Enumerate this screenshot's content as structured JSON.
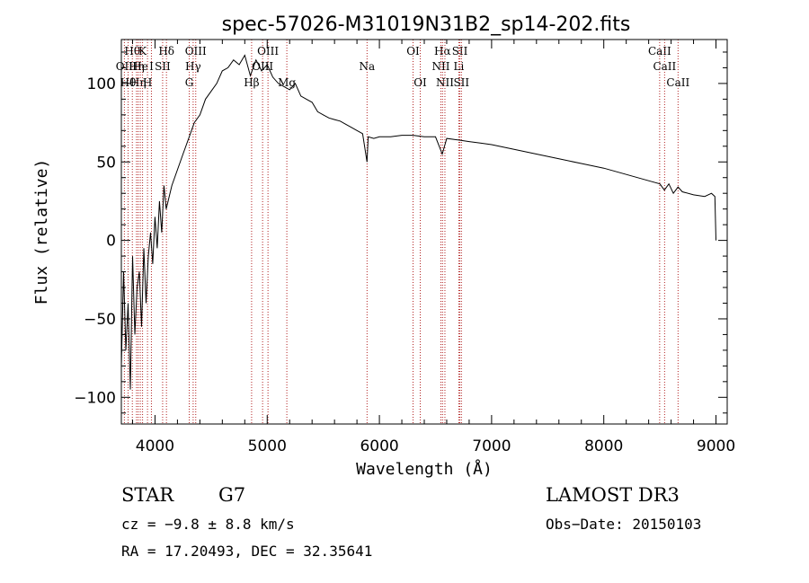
{
  "chart_data": {
    "type": "line",
    "title": "spec-57026-M31019N31B2_sp14-202.fits",
    "xlabel": "Wavelength (Å)",
    "ylabel": "Flux (relative)",
    "xlim": [
      3700,
      9100
    ],
    "ylim": [
      -117,
      128
    ],
    "xticks": [
      4000,
      5000,
      6000,
      7000,
      8000,
      9000
    ],
    "xtick_labels": [
      "4000",
      "5000",
      "6000",
      "7000",
      "8000",
      "9000"
    ],
    "yticks": [
      -100,
      -50,
      0,
      50,
      100
    ],
    "ytick_labels": [
      "−100",
      "−50",
      "0",
      "50",
      "100"
    ],
    "series_color": "#000000",
    "line_color": "#b22222",
    "spectrum": {
      "x": [
        3700,
        3720,
        3740,
        3760,
        3780,
        3800,
        3820,
        3840,
        3860,
        3880,
        3900,
        3920,
        3940,
        3960,
        3980,
        4000,
        4020,
        4040,
        4060,
        4080,
        4100,
        4150,
        4200,
        4250,
        4300,
        4350,
        4400,
        4450,
        4500,
        4550,
        4600,
        4650,
        4700,
        4750,
        4800,
        4850,
        4900,
        4950,
        5000,
        5050,
        5100,
        5150,
        5200,
        5250,
        5300,
        5350,
        5400,
        5450,
        5500,
        5550,
        5600,
        5650,
        5700,
        5750,
        5800,
        5850,
        5890,
        5900,
        5950,
        6000,
        6100,
        6200,
        6300,
        6400,
        6500,
        6560,
        6600,
        6700,
        6800,
        6900,
        7000,
        7200,
        7400,
        7600,
        7800,
        8000,
        8200,
        8400,
        8500,
        8540,
        8580,
        8620,
        8662,
        8700,
        8800,
        8900,
        8960,
        8990,
        9000
      ],
      "y": [
        -80,
        -20,
        -70,
        -40,
        -95,
        -10,
        -60,
        -30,
        -20,
        -55,
        -5,
        -40,
        -10,
        5,
        -15,
        15,
        -5,
        25,
        5,
        35,
        20,
        35,
        45,
        55,
        65,
        75,
        80,
        90,
        95,
        100,
        108,
        110,
        115,
        112,
        118,
        105,
        115,
        108,
        112,
        104,
        100,
        98,
        96,
        100,
        92,
        90,
        88,
        82,
        80,
        78,
        77,
        76,
        74,
        72,
        70,
        68,
        50,
        66,
        65,
        66,
        66,
        67,
        67,
        66,
        66,
        55,
        65,
        64,
        63,
        62,
        61,
        58,
        55,
        52,
        49,
        46,
        42,
        38,
        36,
        32,
        36,
        30,
        34,
        31,
        29,
        28,
        30,
        28,
        0
      ]
    },
    "lines_top": [
      {
        "wl": 3798,
        "label": "Hθ"
      },
      {
        "wl": 3889,
        "label": "K"
      },
      {
        "wl": 4102,
        "label": "Hδ"
      },
      {
        "wl": 4363,
        "label": "OIII"
      },
      {
        "wl": 5007,
        "label": "OIII"
      },
      {
        "wl": 6300,
        "label": "OI"
      },
      {
        "wl": 6563,
        "label": "Hα"
      },
      {
        "wl": 6717,
        "label": "SII"
      },
      {
        "wl": 8498,
        "label": "CaII"
      }
    ],
    "lines_mid": [
      {
        "wl": 3727,
        "label": "OII"
      },
      {
        "wl": 3835,
        "label": "Hη"
      },
      {
        "wl": 3869,
        "label": "He"
      },
      {
        "wl": 3968,
        "label": "I"
      },
      {
        "wl": 4068,
        "label": "SII"
      },
      {
        "wl": 4340,
        "label": "Hγ"
      },
      {
        "wl": 4959,
        "label": "OIII"
      },
      {
        "wl": 5890,
        "label": "Na"
      },
      {
        "wl": 6548,
        "label": "NII"
      },
      {
        "wl": 6708,
        "label": "Li"
      },
      {
        "wl": 8542,
        "label": "CaII"
      }
    ],
    "lines_low": [
      {
        "wl": 3760,
        "label": "Hθ"
      },
      {
        "wl": 3850,
        "label": "Hη"
      },
      {
        "wl": 3933,
        "label": "H"
      },
      {
        "wl": 4305,
        "label": "G"
      },
      {
        "wl": 4861,
        "label": "Hβ"
      },
      {
        "wl": 5175,
        "label": "Mg"
      },
      {
        "wl": 6364,
        "label": "OI"
      },
      {
        "wl": 6584,
        "label": "NII"
      },
      {
        "wl": 6731,
        "label": "SII"
      },
      {
        "wl": 8662,
        "label": "CaII"
      }
    ]
  },
  "info": {
    "object_class": "STAR",
    "subclass": "G7",
    "survey": "LAMOST DR3",
    "cz": "cz = −9.8 ± 8.8 km/s",
    "obs_date": "Obs−Date: 20150103",
    "radec": "RA =  17.20493, DEC =  32.35641"
  }
}
